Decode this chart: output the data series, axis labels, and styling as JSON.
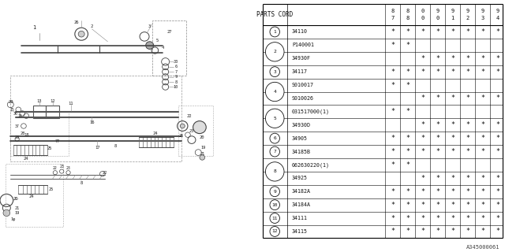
{
  "title": "",
  "bg_color": "#ffffff",
  "table_header": [
    "PARTS CORD",
    "87",
    "88",
    "00",
    "90",
    "91",
    "92",
    "93",
    "94"
  ],
  "rows": [
    {
      "num": "1",
      "code": "34110",
      "marks": [
        1,
        1,
        1,
        1,
        1,
        1,
        1,
        1
      ]
    },
    {
      "num": "2",
      "code": "P140001",
      "marks": [
        1,
        1,
        0,
        0,
        0,
        0,
        0,
        0
      ]
    },
    {
      "num": "2",
      "code": "34930F",
      "marks": [
        0,
        0,
        1,
        1,
        1,
        1,
        1,
        1
      ]
    },
    {
      "num": "3",
      "code": "34117",
      "marks": [
        1,
        1,
        1,
        1,
        1,
        1,
        1,
        1
      ]
    },
    {
      "num": "4",
      "code": "S010017",
      "marks": [
        1,
        1,
        0,
        0,
        0,
        0,
        0,
        0
      ]
    },
    {
      "num": "4",
      "code": "S010026",
      "marks": [
        0,
        0,
        1,
        1,
        1,
        1,
        1,
        1
      ]
    },
    {
      "num": "5",
      "code": "031517000(1)",
      "marks": [
        1,
        1,
        0,
        0,
        0,
        0,
        0,
        0
      ]
    },
    {
      "num": "5",
      "code": "34930D",
      "marks": [
        0,
        0,
        1,
        1,
        1,
        1,
        1,
        1
      ]
    },
    {
      "num": "6",
      "code": "34905",
      "marks": [
        1,
        1,
        1,
        1,
        1,
        1,
        1,
        1
      ]
    },
    {
      "num": "7",
      "code": "34185B",
      "marks": [
        1,
        1,
        1,
        1,
        1,
        1,
        1,
        1
      ]
    },
    {
      "num": "8",
      "code": "062630220(1)",
      "marks": [
        1,
        1,
        0,
        0,
        0,
        0,
        0,
        0
      ]
    },
    {
      "num": "8",
      "code": "34925",
      "marks": [
        0,
        0,
        1,
        1,
        1,
        1,
        1,
        1
      ]
    },
    {
      "num": "9",
      "code": "34182A",
      "marks": [
        1,
        1,
        1,
        1,
        1,
        1,
        1,
        1
      ]
    },
    {
      "num": "10",
      "code": "34184A",
      "marks": [
        1,
        1,
        1,
        1,
        1,
        1,
        1,
        1
      ]
    },
    {
      "num": "11",
      "code": "34111",
      "marks": [
        1,
        1,
        1,
        1,
        1,
        1,
        1,
        1
      ]
    },
    {
      "num": "12",
      "code": "34115",
      "marks": [
        1,
        1,
        1,
        1,
        1,
        1,
        1,
        1
      ]
    }
  ],
  "watermark": "A345000061",
  "col_years": [
    "87",
    "88",
    "00",
    "90",
    "91",
    "92",
    "93",
    "94"
  ]
}
